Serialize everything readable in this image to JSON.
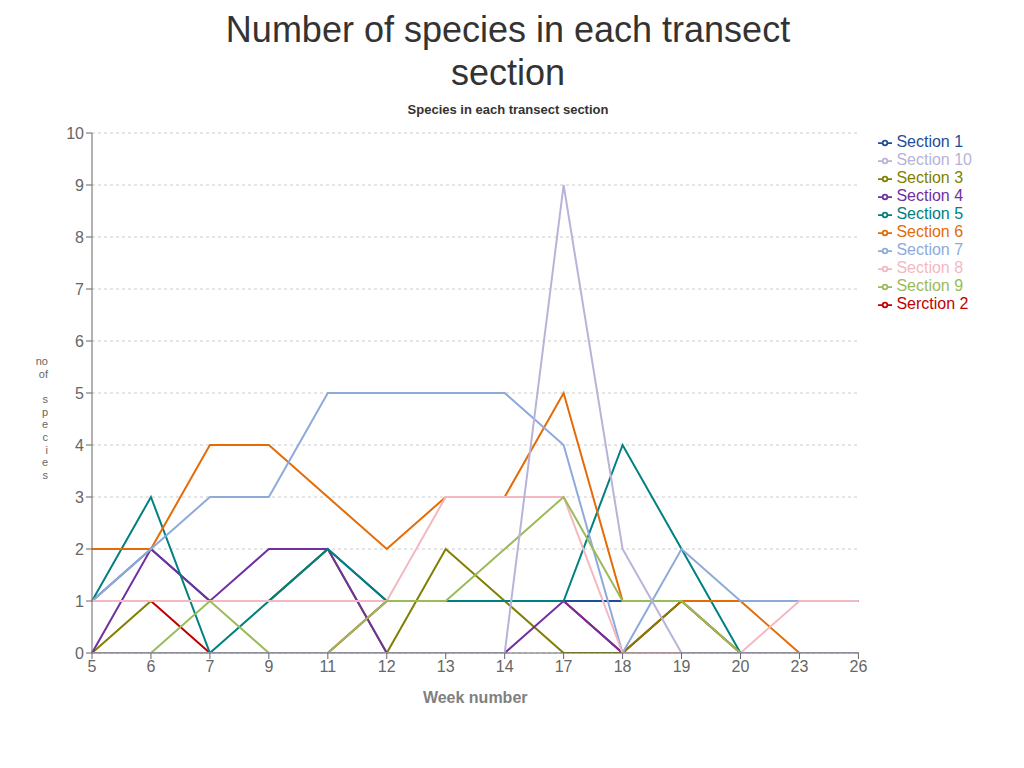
{
  "chart_data": {
    "type": "line",
    "title": "Number of species in each transect\nsection",
    "subtitle": "Species in each transect section",
    "xlabel": "Week number",
    "ylabel": "no\nof\n\ns\np\ne\nc\ni\ne\ns",
    "categories": [
      "5",
      "6",
      "7",
      "9",
      "11",
      "12",
      "13",
      "14",
      "17",
      "18",
      "19",
      "20",
      "23",
      "26"
    ],
    "series": [
      {
        "name": "Section 1",
        "color": "#1f4e99",
        "values": [
          1,
          2,
          1,
          1,
          2,
          1,
          1,
          1,
          1,
          1,
          1,
          1,
          1,
          1
        ]
      },
      {
        "name": "Serction 2",
        "color": "#c00000",
        "values": [
          1,
          1,
          0,
          0,
          0,
          1,
          1,
          1,
          1,
          0,
          1,
          0,
          0,
          0
        ]
      },
      {
        "name": "Section 3",
        "color": "#7f7f00",
        "values": [
          0,
          1,
          1,
          1,
          2,
          0,
          2,
          1,
          0,
          0,
          1,
          0,
          0,
          0
        ]
      },
      {
        "name": "Section 4",
        "color": "#7030a0",
        "values": [
          0,
          2,
          1,
          2,
          2,
          0,
          0,
          0,
          1,
          0,
          0,
          0,
          0,
          0
        ]
      },
      {
        "name": "Section 5",
        "color": "#008080",
        "values": [
          1,
          3,
          0,
          1,
          2,
          1,
          1,
          1,
          1,
          4,
          2,
          0,
          0,
          0
        ]
      },
      {
        "name": "Section 6",
        "color": "#e36c09",
        "values": [
          2,
          2,
          4,
          4,
          3,
          2,
          3,
          3,
          5,
          1,
          1,
          1,
          0,
          0
        ]
      },
      {
        "name": "Section 7",
        "color": "#8eaadb",
        "values": [
          1,
          2,
          3,
          3,
          5,
          5,
          5,
          5,
          4,
          0,
          2,
          1,
          1,
          1
        ]
      },
      {
        "name": "Section 8",
        "color": "#f4b8c1",
        "values": [
          1,
          1,
          1,
          1,
          1,
          1,
          3,
          3,
          3,
          0,
          0,
          0,
          1,
          1
        ]
      },
      {
        "name": "Section 9",
        "color": "#9bbb59",
        "values": [
          0,
          0,
          1,
          0,
          0,
          1,
          1,
          2,
          3,
          1,
          1,
          0,
          0,
          0
        ]
      },
      {
        "name": "Section 10",
        "color": "#b8b3d8",
        "values": [
          0,
          0,
          0,
          0,
          0,
          0,
          0,
          0,
          9,
          2,
          0,
          0,
          0,
          0
        ]
      }
    ],
    "ylim": [
      0,
      10
    ],
    "yticks": [
      0,
      1,
      2,
      3,
      4,
      5,
      6,
      7,
      8,
      9,
      10
    ],
    "grid": true,
    "legend": "right"
  }
}
